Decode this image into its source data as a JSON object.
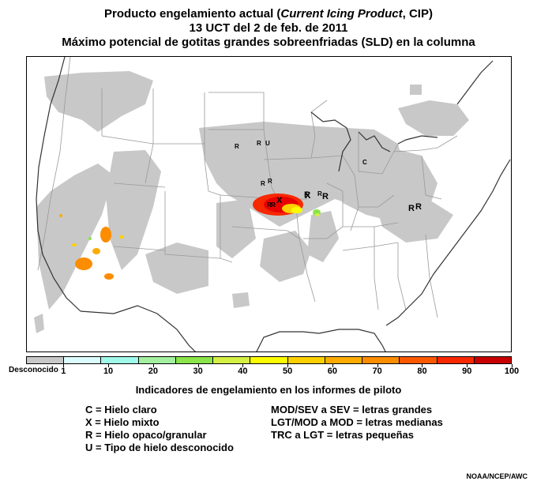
{
  "title": {
    "line1_prefix": "Producto engelamiento actual (",
    "line1_italic": "Current Icing Product",
    "line1_suffix": ", CIP)",
    "line2": "13 UCT del 2 de feb. de 2011",
    "line3": "Máximo potencial de gotitas grandes sobreenfriadas (SLD) en la columna"
  },
  "colorbar": {
    "unknown_label": "Desconocido",
    "ticks": [
      "1",
      "10",
      "20",
      "30",
      "40",
      "50",
      "60",
      "70",
      "80",
      "90",
      "100"
    ],
    "colors": [
      "#c8c8c8",
      "#dcfcfc",
      "#a0f8e8",
      "#a4f0a0",
      "#8ae44a",
      "#d4f044",
      "#fcfc00",
      "#fcd000",
      "#fcac00",
      "#fc8c00",
      "#fc5800",
      "#f82800",
      "#c80000"
    ]
  },
  "pirep_legend": {
    "heading": "Indicadores de engelamiento en los informes de piloto",
    "types": [
      "C = Hielo claro",
      "X = Hielo mixto",
      "R = Hielo opaco/granular",
      "U = Tipo de hielo desconocido"
    ],
    "intensities": [
      "MOD/SEV a SEV = letras grandes",
      "LGT/MOD a MOD = letras medianas",
      "TRC a LGT = letras pequeñas"
    ]
  },
  "pireps": [
    {
      "symbol": "R",
      "size": "small"
    },
    {
      "symbol": "R",
      "size": "small"
    },
    {
      "symbol": "U",
      "size": "small"
    },
    {
      "symbol": "C",
      "size": "small"
    },
    {
      "symbol": "R",
      "size": "small"
    },
    {
      "symbol": "R",
      "size": "small"
    },
    {
      "symbol": "R",
      "size": "medium"
    },
    {
      "symbol": "X",
      "size": "medium"
    },
    {
      "symbol": "R",
      "size": "small"
    },
    {
      "symbol": "X",
      "size": "medium"
    },
    {
      "symbol": "R",
      "size": "medium"
    },
    {
      "symbol": "R",
      "size": "small"
    },
    {
      "symbol": "R",
      "size": "medium"
    },
    {
      "symbol": "R",
      "size": "medium"
    },
    {
      "symbol": "R",
      "size": "small"
    }
  ],
  "credit": "NOAA/NCEP/AWC"
}
